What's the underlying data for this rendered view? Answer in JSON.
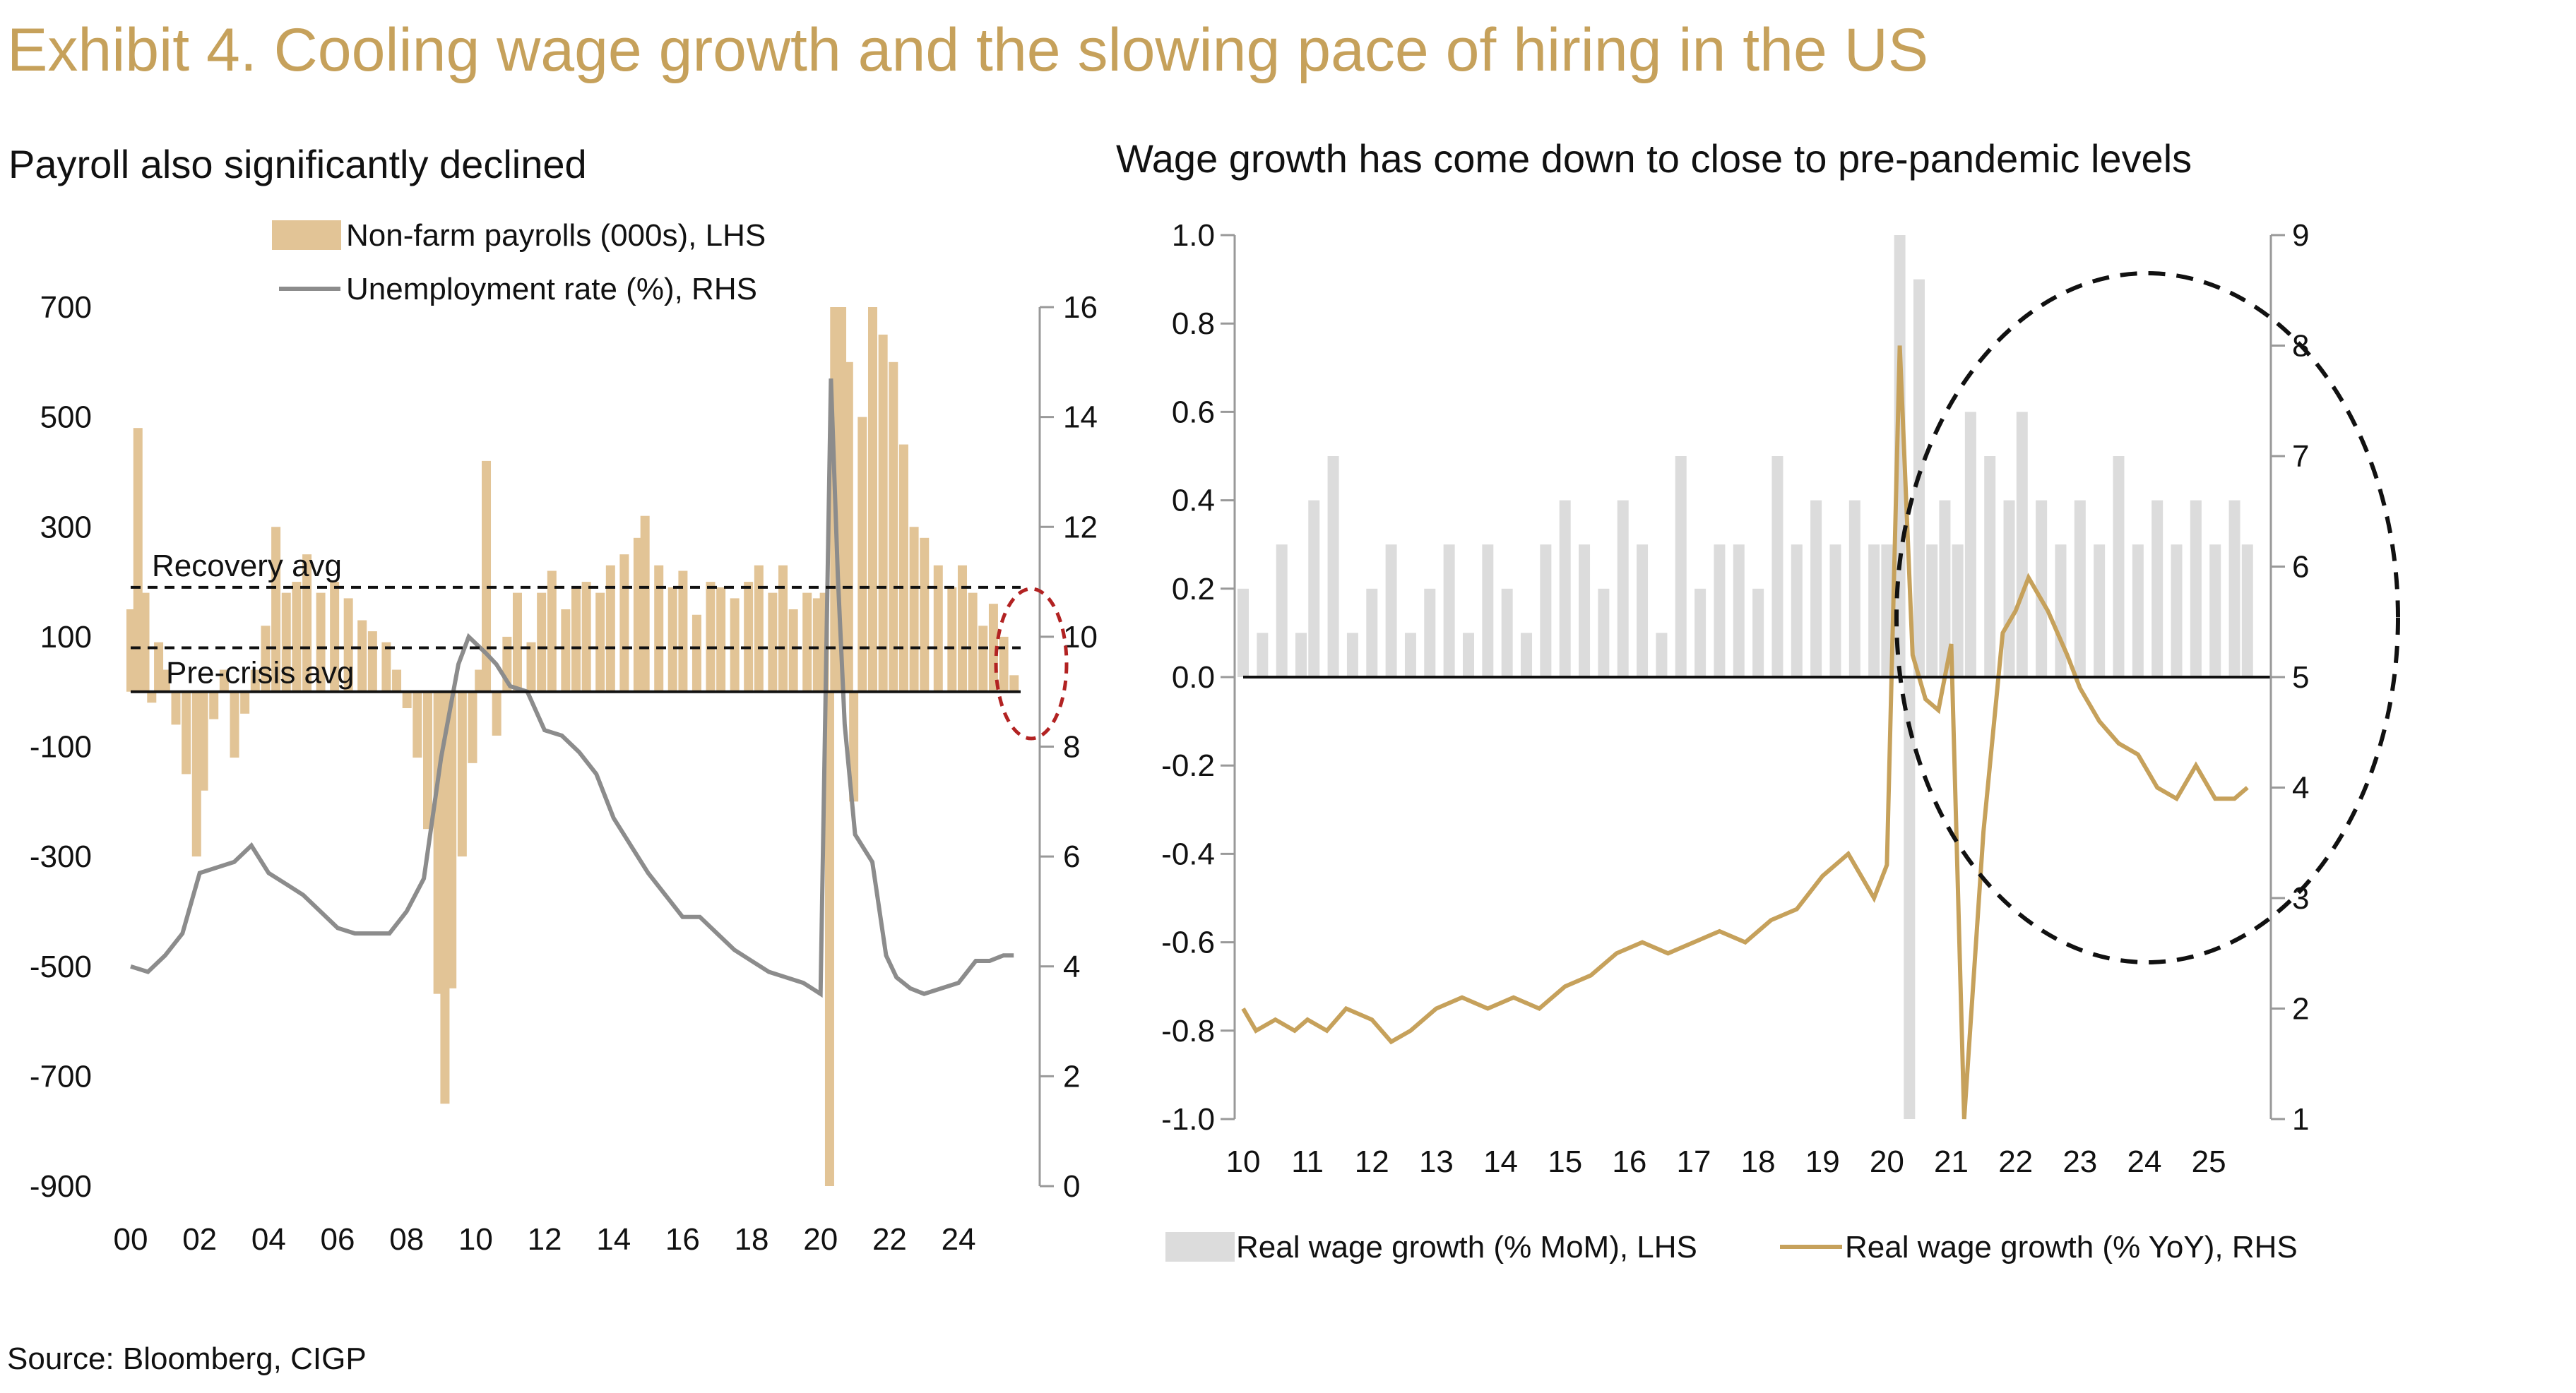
{
  "title": "Exhibit 4. Cooling wage growth and the slowing pace of hiring in the US",
  "source": "Source: Bloomberg, CIGP",
  "colors": {
    "gold": "#c6a15b",
    "tan": "#e2c496",
    "grey_line": "#8c8c8c",
    "grey_bar": "#dcdcdc",
    "circle_red": "#b22222"
  },
  "chart_data": [
    {
      "type": "bar+line",
      "title": "Payroll also significantly declined",
      "x_ticks": [
        "00",
        "02",
        "04",
        "06",
        "08",
        "10",
        "12",
        "14",
        "16",
        "18",
        "20",
        "22",
        "24"
      ],
      "x_range": [
        2000,
        2025.8
      ],
      "y_left_ticks": [
        "700",
        "500",
        "300",
        "100",
        "-100",
        "-300",
        "-500",
        "-700",
        "-900"
      ],
      "y_left_range": [
        -900,
        700
      ],
      "y_right_ticks": [
        "16",
        "14",
        "12",
        "10",
        "8",
        "6",
        "4",
        "2",
        "0"
      ],
      "y_right_range": [
        0,
        16
      ],
      "legend": [
        "Non-farm payrolls (000s), LHS",
        "Unemployment rate (%), RHS"
      ],
      "annotations": [
        "Recovery avg",
        "Pre-crisis avg"
      ],
      "reference_lines": [
        {
          "name": "Recovery avg",
          "value": 190
        },
        {
          "name": "Pre-crisis avg",
          "value": 80
        }
      ],
      "payrolls_points": [
        [
          2000.0,
          150
        ],
        [
          2000.2,
          480
        ],
        [
          2000.4,
          180
        ],
        [
          2000.6,
          -20
        ],
        [
          2000.8,
          90
        ],
        [
          2001.0,
          40
        ],
        [
          2001.3,
          -60
        ],
        [
          2001.6,
          -150
        ],
        [
          2001.9,
          -300
        ],
        [
          2002.1,
          -180
        ],
        [
          2002.4,
          -50
        ],
        [
          2002.7,
          40
        ],
        [
          2003.0,
          -120
        ],
        [
          2003.3,
          -40
        ],
        [
          2003.6,
          40
        ],
        [
          2003.9,
          120
        ],
        [
          2004.2,
          300
        ],
        [
          2004.5,
          180
        ],
        [
          2004.8,
          200
        ],
        [
          2005.1,
          250
        ],
        [
          2005.5,
          180
        ],
        [
          2005.9,
          200
        ],
        [
          2006.3,
          170
        ],
        [
          2006.7,
          130
        ],
        [
          2007.0,
          110
        ],
        [
          2007.4,
          90
        ],
        [
          2007.7,
          40
        ],
        [
          2008.0,
          -30
        ],
        [
          2008.3,
          -120
        ],
        [
          2008.6,
          -250
        ],
        [
          2008.9,
          -550
        ],
        [
          2009.1,
          -750
        ],
        [
          2009.3,
          -540
        ],
        [
          2009.6,
          -300
        ],
        [
          2009.9,
          -130
        ],
        [
          2010.1,
          40
        ],
        [
          2010.3,
          420
        ],
        [
          2010.6,
          -80
        ],
        [
          2010.9,
          100
        ],
        [
          2011.2,
          180
        ],
        [
          2011.6,
          90
        ],
        [
          2011.9,
          180
        ],
        [
          2012.2,
          220
        ],
        [
          2012.6,
          150
        ],
        [
          2012.9,
          190
        ],
        [
          2013.2,
          200
        ],
        [
          2013.6,
          180
        ],
        [
          2013.9,
          230
        ],
        [
          2014.3,
          250
        ],
        [
          2014.7,
          280
        ],
        [
          2014.9,
          320
        ],
        [
          2015.3,
          230
        ],
        [
          2015.7,
          190
        ],
        [
          2016.0,
          220
        ],
        [
          2016.4,
          140
        ],
        [
          2016.8,
          200
        ],
        [
          2017.1,
          190
        ],
        [
          2017.5,
          170
        ],
        [
          2017.9,
          200
        ],
        [
          2018.2,
          230
        ],
        [
          2018.6,
          180
        ],
        [
          2018.9,
          230
        ],
        [
          2019.2,
          150
        ],
        [
          2019.6,
          180
        ],
        [
          2019.9,
          170
        ],
        [
          2020.1,
          180
        ],
        [
          2020.25,
          -900
        ],
        [
          2020.4,
          700
        ],
        [
          2020.6,
          700
        ],
        [
          2020.8,
          600
        ],
        [
          2020.95,
          -200
        ],
        [
          2021.2,
          500
        ],
        [
          2021.5,
          700
        ],
        [
          2021.8,
          650
        ],
        [
          2022.1,
          600
        ],
        [
          2022.4,
          450
        ],
        [
          2022.7,
          300
        ],
        [
          2023.0,
          280
        ],
        [
          2023.4,
          230
        ],
        [
          2023.8,
          190
        ],
        [
          2024.1,
          230
        ],
        [
          2024.4,
          180
        ],
        [
          2024.7,
          120
        ],
        [
          2025.0,
          160
        ],
        [
          2025.3,
          100
        ],
        [
          2025.6,
          30
        ]
      ],
      "unemployment_points": [
        [
          2000.0,
          4.0
        ],
        [
          2000.5,
          3.9
        ],
        [
          2001.0,
          4.2
        ],
        [
          2001.5,
          4.6
        ],
        [
          2002.0,
          5.7
        ],
        [
          2002.5,
          5.8
        ],
        [
          2003.0,
          5.9
        ],
        [
          2003.5,
          6.2
        ],
        [
          2004.0,
          5.7
        ],
        [
          2004.5,
          5.5
        ],
        [
          2005.0,
          5.3
        ],
        [
          2005.5,
          5.0
        ],
        [
          2006.0,
          4.7
        ],
        [
          2006.5,
          4.6
        ],
        [
          2007.0,
          4.6
        ],
        [
          2007.5,
          4.6
        ],
        [
          2008.0,
          5.0
        ],
        [
          2008.5,
          5.6
        ],
        [
          2009.0,
          7.8
        ],
        [
          2009.5,
          9.5
        ],
        [
          2009.8,
          10.0
        ],
        [
          2010.3,
          9.7
        ],
        [
          2010.6,
          9.5
        ],
        [
          2011.0,
          9.1
        ],
        [
          2011.5,
          9.0
        ],
        [
          2012.0,
          8.3
        ],
        [
          2012.5,
          8.2
        ],
        [
          2013.0,
          7.9
        ],
        [
          2013.5,
          7.5
        ],
        [
          2014.0,
          6.7
        ],
        [
          2014.5,
          6.2
        ],
        [
          2015.0,
          5.7
        ],
        [
          2015.5,
          5.3
        ],
        [
          2016.0,
          4.9
        ],
        [
          2016.5,
          4.9
        ],
        [
          2017.0,
          4.6
        ],
        [
          2017.5,
          4.3
        ],
        [
          2018.0,
          4.1
        ],
        [
          2018.5,
          3.9
        ],
        [
          2019.0,
          3.8
        ],
        [
          2019.5,
          3.7
        ],
        [
          2020.0,
          3.5
        ],
        [
          2020.3,
          14.7
        ],
        [
          2020.5,
          11.1
        ],
        [
          2020.7,
          8.4
        ],
        [
          2021.0,
          6.4
        ],
        [
          2021.5,
          5.9
        ],
        [
          2021.9,
          4.2
        ],
        [
          2022.2,
          3.8
        ],
        [
          2022.6,
          3.6
        ],
        [
          2023.0,
          3.5
        ],
        [
          2023.5,
          3.6
        ],
        [
          2024.0,
          3.7
        ],
        [
          2024.5,
          4.1
        ],
        [
          2024.9,
          4.1
        ],
        [
          2025.3,
          4.2
        ],
        [
          2025.6,
          4.2
        ]
      ]
    },
    {
      "type": "bar+line",
      "title": "Wage growth has come down to close to pre-pandemic levels",
      "x_ticks": [
        "10",
        "11",
        "12",
        "13",
        "14",
        "15",
        "16",
        "17",
        "18",
        "19",
        "20",
        "21",
        "22",
        "23",
        "24",
        "25"
      ],
      "x_range": [
        2010,
        2025.8
      ],
      "y_left_ticks": [
        "1.0",
        "0.8",
        "0.6",
        "0.4",
        "0.2",
        "0.0",
        "-0.2",
        "-0.4",
        "-0.6",
        "-0.8",
        "-1.0"
      ],
      "y_left_range": [
        -1.0,
        1.0
      ],
      "y_right_ticks": [
        "9",
        "8",
        "7",
        "6",
        "5",
        "4",
        "3",
        "2",
        "1"
      ],
      "y_right_range": [
        1,
        9
      ],
      "legend": [
        "Real wage growth (% MoM), LHS",
        "Real wage growth (% YoY), RHS"
      ],
      "mom_points": [
        [
          2010.0,
          0.2
        ],
        [
          2010.3,
          0.1
        ],
        [
          2010.6,
          0.3
        ],
        [
          2010.9,
          0.1
        ],
        [
          2011.1,
          0.4
        ],
        [
          2011.4,
          0.5
        ],
        [
          2011.7,
          0.1
        ],
        [
          2012.0,
          0.2
        ],
        [
          2012.3,
          0.3
        ],
        [
          2012.6,
          0.1
        ],
        [
          2012.9,
          0.2
        ],
        [
          2013.2,
          0.3
        ],
        [
          2013.5,
          0.1
        ],
        [
          2013.8,
          0.3
        ],
        [
          2014.1,
          0.2
        ],
        [
          2014.4,
          0.1
        ],
        [
          2014.7,
          0.3
        ],
        [
          2015.0,
          0.4
        ],
        [
          2015.3,
          0.3
        ],
        [
          2015.6,
          0.2
        ],
        [
          2015.9,
          0.4
        ],
        [
          2016.2,
          0.3
        ],
        [
          2016.5,
          0.1
        ],
        [
          2016.8,
          0.5
        ],
        [
          2017.1,
          0.2
        ],
        [
          2017.4,
          0.3
        ],
        [
          2017.7,
          0.3
        ],
        [
          2018.0,
          0.2
        ],
        [
          2018.3,
          0.5
        ],
        [
          2018.6,
          0.3
        ],
        [
          2018.9,
          0.4
        ],
        [
          2019.2,
          0.3
        ],
        [
          2019.5,
          0.4
        ],
        [
          2019.8,
          0.3
        ],
        [
          2020.0,
          0.3
        ],
        [
          2020.2,
          1.0
        ],
        [
          2020.35,
          -1.0
        ],
        [
          2020.5,
          0.9
        ],
        [
          2020.7,
          0.3
        ],
        [
          2020.9,
          0.4
        ],
        [
          2021.1,
          0.3
        ],
        [
          2021.3,
          0.6
        ],
        [
          2021.6,
          0.5
        ],
        [
          2021.9,
          0.4
        ],
        [
          2022.1,
          0.6
        ],
        [
          2022.4,
          0.4
        ],
        [
          2022.7,
          0.3
        ],
        [
          2023.0,
          0.4
        ],
        [
          2023.3,
          0.3
        ],
        [
          2023.6,
          0.5
        ],
        [
          2023.9,
          0.3
        ],
        [
          2024.2,
          0.4
        ],
        [
          2024.5,
          0.3
        ],
        [
          2024.8,
          0.4
        ],
        [
          2025.1,
          0.3
        ],
        [
          2025.4,
          0.4
        ],
        [
          2025.6,
          0.3
        ]
      ],
      "yoy_points": [
        [
          2010.0,
          2.0
        ],
        [
          2010.2,
          1.8
        ],
        [
          2010.5,
          1.9
        ],
        [
          2010.8,
          1.8
        ],
        [
          2011.0,
          1.9
        ],
        [
          2011.3,
          1.8
        ],
        [
          2011.6,
          2.0
        ],
        [
          2012.0,
          1.9
        ],
        [
          2012.3,
          1.7
        ],
        [
          2012.6,
          1.8
        ],
        [
          2013.0,
          2.0
        ],
        [
          2013.4,
          2.1
        ],
        [
          2013.8,
          2.0
        ],
        [
          2014.2,
          2.1
        ],
        [
          2014.6,
          2.0
        ],
        [
          2015.0,
          2.2
        ],
        [
          2015.4,
          2.3
        ],
        [
          2015.8,
          2.5
        ],
        [
          2016.2,
          2.6
        ],
        [
          2016.6,
          2.5
        ],
        [
          2017.0,
          2.6
        ],
        [
          2017.4,
          2.7
        ],
        [
          2017.8,
          2.6
        ],
        [
          2018.2,
          2.8
        ],
        [
          2018.6,
          2.9
        ],
        [
          2019.0,
          3.2
        ],
        [
          2019.4,
          3.4
        ],
        [
          2019.8,
          3.0
        ],
        [
          2020.0,
          3.3
        ],
        [
          2020.2,
          8.0
        ],
        [
          2020.4,
          5.2
        ],
        [
          2020.6,
          4.8
        ],
        [
          2020.8,
          4.7
        ],
        [
          2021.0,
          5.3
        ],
        [
          2021.2,
          1.0
        ],
        [
          2021.5,
          3.6
        ],
        [
          2021.8,
          5.4
        ],
        [
          2022.0,
          5.6
        ],
        [
          2022.2,
          5.9
        ],
        [
          2022.5,
          5.6
        ],
        [
          2022.8,
          5.2
        ],
        [
          2023.0,
          4.9
        ],
        [
          2023.3,
          4.6
        ],
        [
          2023.6,
          4.4
        ],
        [
          2023.9,
          4.3
        ],
        [
          2024.2,
          4.0
        ],
        [
          2024.5,
          3.9
        ],
        [
          2024.8,
          4.2
        ],
        [
          2025.1,
          3.9
        ],
        [
          2025.4,
          3.9
        ],
        [
          2025.6,
          4.0
        ]
      ]
    }
  ]
}
